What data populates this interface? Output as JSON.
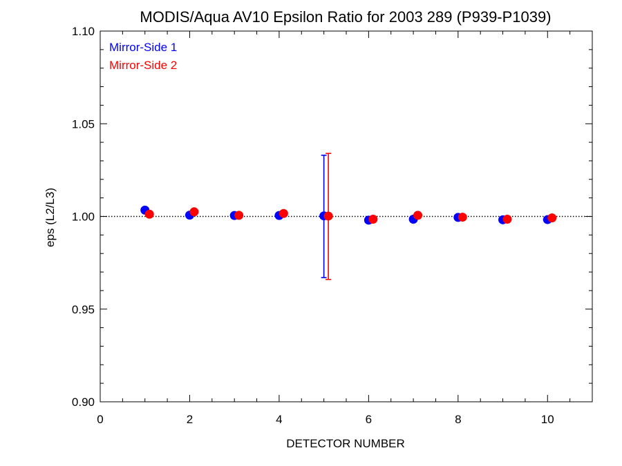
{
  "chart_data": {
    "type": "scatter",
    "title": "MODIS/Aqua AV10 Epsilon Ratio for 2003 289 (P939-P1039)",
    "xlabel": "DETECTOR NUMBER",
    "ylabel": "eps (L2/L3)",
    "xlim": [
      0,
      11
    ],
    "ylim": [
      0.9,
      1.1
    ],
    "x_ticks": [
      "0",
      "2",
      "4",
      "6",
      "8",
      "10"
    ],
    "y_ticks": [
      "0.90",
      "0.95",
      "1.00",
      "1.05",
      "1.10"
    ],
    "reference_line": 1.0,
    "legend_position": "top-left",
    "series": [
      {
        "name": "Mirror-Side 1",
        "color": "#0000ff",
        "x": [
          1,
          2,
          3,
          4,
          5,
          6,
          7,
          8,
          9,
          10
        ],
        "y": [
          1.0034,
          1.0007,
          1.0005,
          1.0005,
          1.0003,
          0.998,
          0.9985,
          0.9995,
          0.9982,
          0.9983
        ],
        "error_bars": [
          {
            "x": 5,
            "low": 0.967,
            "high": 1.033
          }
        ]
      },
      {
        "name": "Mirror-Side 2",
        "color": "#ff0000",
        "x": [
          1.1,
          2.1,
          3.1,
          4.1,
          5.1,
          6.1,
          7.1,
          8.1,
          9.1,
          10.1
        ],
        "y": [
          1.0012,
          1.0025,
          1.0006,
          1.0016,
          1.0002,
          0.9985,
          1.0006,
          0.9996,
          0.9985,
          0.9992
        ],
        "error_bars": [
          {
            "x": 5.1,
            "low": 0.966,
            "high": 1.034
          }
        ]
      }
    ]
  }
}
